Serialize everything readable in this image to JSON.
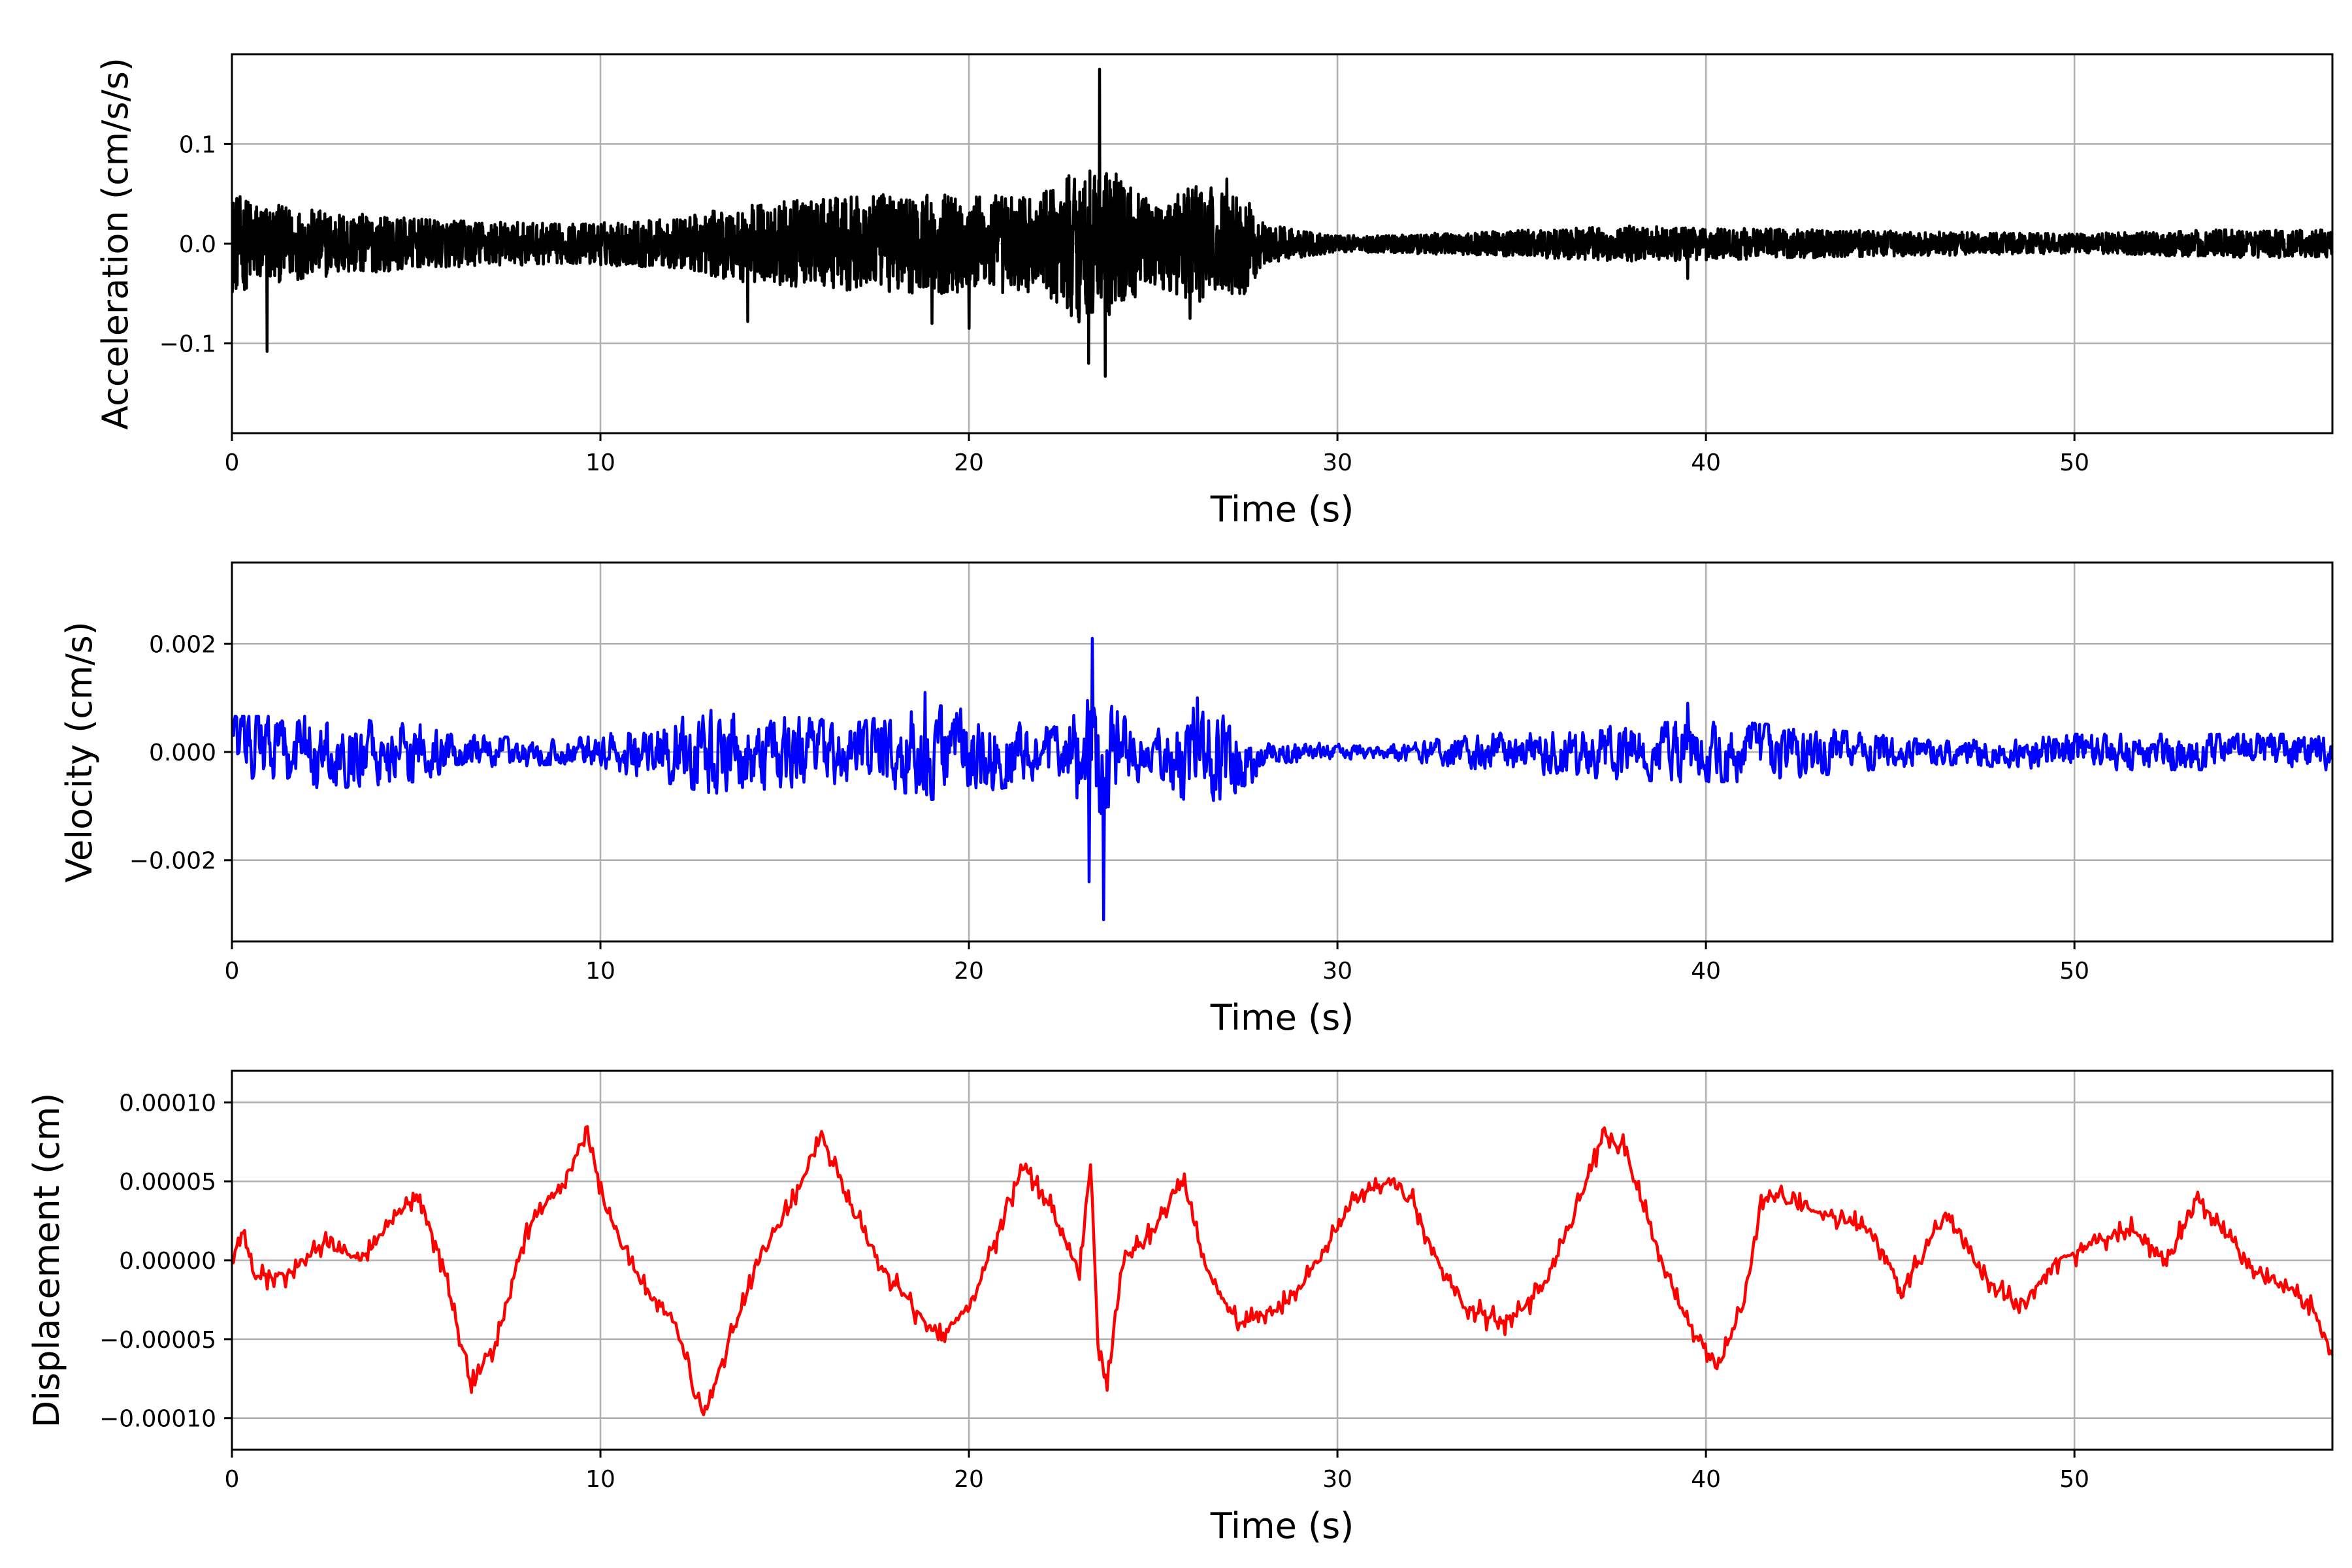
{
  "chart_data": [
    {
      "type": "line",
      "ylabel": "Acceleration (cm/s/s)",
      "xlabel": "Time (s)",
      "xlim": [
        0,
        57
      ],
      "ylim": [
        -0.19,
        0.19
      ],
      "xticks": [
        0,
        10,
        20,
        30,
        40,
        50
      ],
      "yticks": [
        -0.1,
        0.0,
        0.1
      ],
      "ytick_labels": [
        "−0.1",
        "0.0",
        "0.1"
      ],
      "grid": true,
      "series": [
        {
          "color": "#000000",
          "amplitude_envelope": [
            [
              0,
              0.05
            ],
            [
              1,
              0.04
            ],
            [
              2,
              0.035
            ],
            [
              5,
              0.025
            ],
            [
              9,
              0.02
            ],
            [
              12,
              0.025
            ],
            [
              14,
              0.04
            ],
            [
              16,
              0.045
            ],
            [
              18,
              0.05
            ],
            [
              20,
              0.05
            ],
            [
              22,
              0.05
            ],
            [
              23,
              0.08
            ],
            [
              24,
              0.07
            ],
            [
              25,
              0.04
            ],
            [
              26,
              0.06
            ],
            [
              27.5,
              0.05
            ],
            [
              28,
              0.02
            ],
            [
              30,
              0.008
            ],
            [
              34,
              0.012
            ],
            [
              38,
              0.018
            ],
            [
              42,
              0.015
            ],
            [
              46,
              0.012
            ],
            [
              50,
              0.01
            ],
            [
              54,
              0.014
            ],
            [
              57,
              0.014
            ]
          ],
          "peaks": [
            [
              0.95,
              -0.108
            ],
            [
              14.0,
              -0.078
            ],
            [
              19.0,
              -0.08
            ],
            [
              20.0,
              -0.085
            ],
            [
              23.25,
              -0.12
            ],
            [
              23.55,
              0.175
            ],
            [
              23.7,
              -0.133
            ],
            [
              24.0,
              0.07
            ],
            [
              26.0,
              -0.075
            ],
            [
              27.0,
              0.065
            ],
            [
              39.5,
              -0.035
            ]
          ]
        }
      ]
    },
    {
      "type": "line",
      "ylabel": "Velocity (cm/s)",
      "xlabel": "Time (s)",
      "xlim": [
        0,
        57
      ],
      "ylim": [
        -0.0035,
        0.0035
      ],
      "xticks": [
        0,
        10,
        20,
        30,
        40,
        50
      ],
      "yticks": [
        -0.002,
        0.0,
        0.002
      ],
      "ytick_labels": [
        "−0.002",
        "0.000",
        "0.002"
      ],
      "grid": true,
      "series": [
        {
          "color": "#0000ff",
          "amplitude_envelope": [
            [
              0,
              0.0006
            ],
            [
              3,
              0.0006
            ],
            [
              5,
              0.0005
            ],
            [
              6,
              0.0003
            ],
            [
              9,
              0.0002
            ],
            [
              11,
              0.0004
            ],
            [
              13,
              0.0007
            ],
            [
              15,
              0.0006
            ],
            [
              17,
              0.0005
            ],
            [
              19,
              0.0008
            ],
            [
              21,
              0.0006
            ],
            [
              22.5,
              0.0004
            ],
            [
              23.3,
              0.0012
            ],
            [
              24,
              0.0008
            ],
            [
              25,
              0.0003
            ],
            [
              26,
              0.0009
            ],
            [
              27.5,
              0.0007
            ],
            [
              28,
              0.0002
            ],
            [
              31,
              0.0001
            ],
            [
              34,
              0.0003
            ],
            [
              36,
              0.0004
            ],
            [
              39,
              0.0005
            ],
            [
              41,
              0.0005
            ],
            [
              43,
              0.0004
            ],
            [
              46,
              0.0002
            ],
            [
              50,
              0.0003
            ],
            [
              53,
              0.0003
            ],
            [
              57,
              0.0003
            ]
          ],
          "peaks": [
            [
              23.25,
              -0.0024
            ],
            [
              23.35,
              0.0021
            ],
            [
              23.65,
              -0.0031
            ],
            [
              18.8,
              0.0011
            ],
            [
              26.2,
              0.001
            ],
            [
              39.5,
              0.0009
            ]
          ]
        }
      ]
    },
    {
      "type": "line",
      "ylabel": "Displacement (cm)",
      "xlabel": "Time (s)",
      "xlim": [
        0,
        57
      ],
      "ylim": [
        -0.00012,
        0.00012
      ],
      "xticks": [
        0,
        10,
        20,
        30,
        40,
        50
      ],
      "yticks": [
        -0.0001,
        -5e-05,
        0.0,
        5e-05,
        0.0001
      ],
      "ytick_labels": [
        "−0.00010",
        "−0.00005",
        "0.00000",
        "0.00005",
        "0.00010"
      ],
      "grid": true,
      "series": [
        {
          "color": "#ff0000",
          "points": [
            [
              0,
              0.0
            ],
            [
              0.3,
              2e-05
            ],
            [
              0.6,
              -1e-05
            ],
            [
              1.5,
              -1e-05
            ],
            [
              2.5,
              1e-05
            ],
            [
              3.5,
              0.0
            ],
            [
              4.5,
              3e-05
            ],
            [
              5.1,
              4e-05
            ],
            [
              5.8,
              -1e-05
            ],
            [
              6.5,
              -8e-05
            ],
            [
              7.2,
              -5e-05
            ],
            [
              8.0,
              2e-05
            ],
            [
              9.0,
              5e-05
            ],
            [
              9.6,
              8e-05
            ],
            [
              10.2,
              3e-05
            ],
            [
              11.0,
              -1e-05
            ],
            [
              12.0,
              -4e-05
            ],
            [
              12.8,
              -0.0001
            ],
            [
              13.5,
              -5e-05
            ],
            [
              14.5,
              1e-05
            ],
            [
              15.3,
              4e-05
            ],
            [
              16.0,
              8e-05
            ],
            [
              16.5,
              5e-05
            ],
            [
              17.5,
              0.0
            ],
            [
              18.5,
              -3e-05
            ],
            [
              19.3,
              -5e-05
            ],
            [
              20.2,
              -2e-05
            ],
            [
              21.0,
              3e-05
            ],
            [
              21.5,
              6e-05
            ],
            [
              22.3,
              3e-05
            ],
            [
              23.0,
              -1e-05
            ],
            [
              23.3,
              6e-05
            ],
            [
              23.5,
              -5e-05
            ],
            [
              23.75,
              -8e-05
            ],
            [
              24.2,
              0.0
            ],
            [
              25.0,
              2e-05
            ],
            [
              25.8,
              5e-05
            ],
            [
              26.5,
              -1e-05
            ],
            [
              27.3,
              -4e-05
            ],
            [
              28.5,
              -3e-05
            ],
            [
              29.5,
              0.0
            ],
            [
              30.5,
              4e-05
            ],
            [
              31.3,
              5e-05
            ],
            [
              32.0,
              4e-05
            ],
            [
              32.7,
              0.0
            ],
            [
              33.5,
              -3e-05
            ],
            [
              34.5,
              -4e-05
            ],
            [
              35.5,
              -2e-05
            ],
            [
              36.3,
              2e-05
            ],
            [
              37.2,
              8e-05
            ],
            [
              37.8,
              7e-05
            ],
            [
              38.5,
              2e-05
            ],
            [
              39.3,
              -3e-05
            ],
            [
              40.3,
              -7e-05
            ],
            [
              41.0,
              -3e-05
            ],
            [
              41.5,
              4e-05
            ],
            [
              42.0,
              4e-05
            ],
            [
              43.0,
              3e-05
            ],
            [
              44.5,
              2e-05
            ],
            [
              45.3,
              -2e-05
            ],
            [
              46.5,
              3e-05
            ],
            [
              47.5,
              -1e-05
            ],
            [
              48.5,
              -3e-05
            ],
            [
              49.5,
              0.0
            ],
            [
              50.5,
              1e-05
            ],
            [
              51.5,
              2e-05
            ],
            [
              52.5,
              0.0
            ],
            [
              53.3,
              4e-05
            ],
            [
              54.0,
              2e-05
            ],
            [
              55.0,
              -1e-05
            ],
            [
              56.0,
              -2e-05
            ],
            [
              56.5,
              -3e-05
            ],
            [
              57,
              -6e-05
            ]
          ]
        }
      ]
    }
  ]
}
